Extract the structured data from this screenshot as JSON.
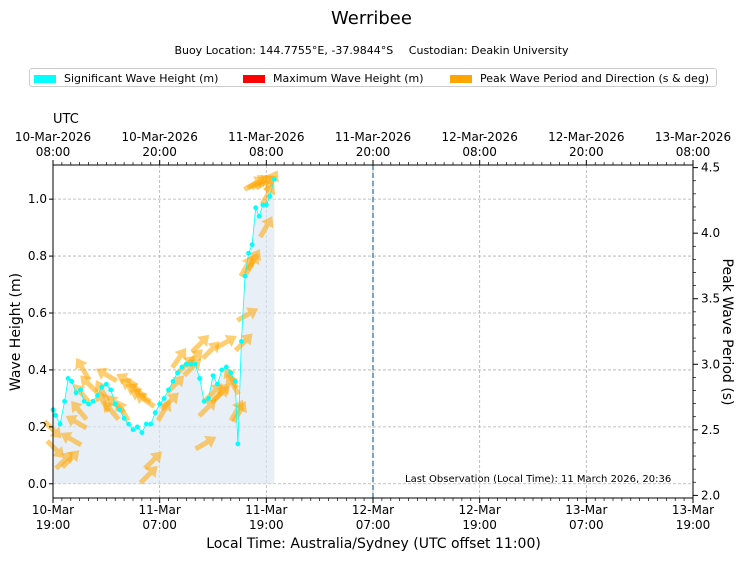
{
  "title": "Werribee",
  "subtitle": {
    "location": "Buoy Location: 144.7755°E, -37.9844°S",
    "custodian": "Custodian: Deakin University"
  },
  "legend": [
    {
      "label": "Significant Wave Height (m)",
      "color": "#00ffff"
    },
    {
      "label": "Maximum Wave Height (m)",
      "color": "#ff0000"
    },
    {
      "label": "Peak Wave Period and Direction (s & deg)",
      "color": "#ffa500"
    }
  ],
  "last_observation": "Last Observation (Local Time): 11 March 2026, 20:36",
  "utc_label": "UTC",
  "chart_data": {
    "type": "line",
    "title": "Werribee",
    "xlabel": "Local Time: Australia/Sydney (UTC offset 11:00)",
    "ylabel": "Wave Height (m)",
    "y2label": "Peak Wave Period (s)",
    "xlim_hours": [
      0,
      72
    ],
    "ylim": [
      -0.05,
      1.12
    ],
    "y2lim": [
      1.98,
      4.52
    ],
    "yticks": [
      0.0,
      0.2,
      0.4,
      0.6,
      0.8,
      1.0
    ],
    "y2ticks": [
      2.0,
      2.5,
      3.0,
      3.5,
      4.0,
      4.5
    ],
    "xticks_bottom": [
      {
        "h": 0,
        "l1": "10-Mar",
        "l2": "19:00"
      },
      {
        "h": 12,
        "l1": "11-Mar",
        "l2": "07:00"
      },
      {
        "h": 24,
        "l1": "11-Mar",
        "l2": "19:00"
      },
      {
        "h": 36,
        "l1": "12-Mar",
        "l2": "07:00"
      },
      {
        "h": 48,
        "l1": "12-Mar",
        "l2": "19:00"
      },
      {
        "h": 60,
        "l1": "13-Mar",
        "l2": "07:00"
      },
      {
        "h": 72,
        "l1": "13-Mar",
        "l2": "19:00"
      }
    ],
    "xticks_top": [
      {
        "h": 0,
        "l1": "10-Mar-2026",
        "l2": "08:00"
      },
      {
        "h": 12,
        "l1": "10-Mar-2026",
        "l2": "20:00"
      },
      {
        "h": 24,
        "l1": "11-Mar-2026",
        "l2": "08:00"
      },
      {
        "h": 36,
        "l1": "11-Mar-2026",
        "l2": "20:00"
      },
      {
        "h": 48,
        "l1": "12-Mar-2026",
        "l2": "08:00"
      },
      {
        "h": 60,
        "l1": "12-Mar-2026",
        "l2": "20:00"
      },
      {
        "h": 72,
        "l1": "13-Mar-2026",
        "l2": "08:00"
      }
    ],
    "now_marker_h": 36,
    "series": [
      {
        "name": "Significant Wave Height (m)",
        "color": "#00ffff",
        "points": [
          [
            0.0,
            0.26
          ],
          [
            0.3,
            0.24
          ],
          [
            0.8,
            0.21
          ],
          [
            1.3,
            0.29
          ],
          [
            1.7,
            0.37
          ],
          [
            2.1,
            0.36
          ],
          [
            2.6,
            0.32
          ],
          [
            3.1,
            0.33
          ],
          [
            3.5,
            0.29
          ],
          [
            4.0,
            0.28
          ],
          [
            4.5,
            0.29
          ],
          [
            5.0,
            0.31
          ],
          [
            5.5,
            0.34
          ],
          [
            6.0,
            0.35
          ],
          [
            6.5,
            0.33
          ],
          [
            7.0,
            0.28
          ],
          [
            7.5,
            0.26
          ],
          [
            8.0,
            0.23
          ],
          [
            8.5,
            0.21
          ],
          [
            9.0,
            0.19
          ],
          [
            9.5,
            0.2
          ],
          [
            10.0,
            0.18
          ],
          [
            10.5,
            0.21
          ],
          [
            11.0,
            0.21
          ],
          [
            11.5,
            0.25
          ],
          [
            12.0,
            0.28
          ],
          [
            12.5,
            0.3
          ],
          [
            13.0,
            0.33
          ],
          [
            13.5,
            0.36
          ],
          [
            14.0,
            0.39
          ],
          [
            14.5,
            0.41
          ],
          [
            15.0,
            0.42
          ],
          [
            15.5,
            0.42
          ],
          [
            16.0,
            0.42
          ],
          [
            16.5,
            0.37
          ],
          [
            17.0,
            0.29
          ],
          [
            17.5,
            0.3
          ],
          [
            18.0,
            0.38
          ],
          [
            18.5,
            0.35
          ],
          [
            19.0,
            0.4
          ],
          [
            19.5,
            0.41
          ],
          [
            20.0,
            0.39
          ],
          [
            20.5,
            0.36
          ],
          [
            20.8,
            0.14
          ],
          [
            21.2,
            0.5
          ],
          [
            21.6,
            0.73
          ],
          [
            22.0,
            0.81
          ],
          [
            22.4,
            0.84
          ],
          [
            22.8,
            0.97
          ],
          [
            23.2,
            0.94
          ],
          [
            23.6,
            0.98
          ],
          [
            24.0,
            0.98
          ],
          [
            24.4,
            1.01
          ],
          [
            24.9,
            1.07
          ]
        ]
      },
      {
        "name": "Peak Wave Period and Direction (s & deg)",
        "color": "#ffa500",
        "points": [
          [
            0.0,
            2.5,
            135
          ],
          [
            0.3,
            2.35,
            135
          ],
          [
            1.3,
            2.27,
            45
          ],
          [
            2.0,
            2.28,
            45
          ],
          [
            2.0,
            2.43,
            300
          ],
          [
            2.6,
            2.56,
            300
          ],
          [
            2.9,
            2.65,
            320
          ],
          [
            3.2,
            2.78,
            320
          ],
          [
            3.3,
            2.97,
            330
          ],
          [
            4.0,
            2.85,
            315
          ],
          [
            5.5,
            2.8,
            330
          ],
          [
            5.6,
            2.72,
            330
          ],
          [
            6.0,
            2.92,
            300
          ],
          [
            6.5,
            2.65,
            320
          ],
          [
            7.0,
            2.7,
            315
          ],
          [
            7.8,
            2.65,
            330
          ],
          [
            8.3,
            2.88,
            300
          ],
          [
            8.7,
            2.84,
            300
          ],
          [
            9.3,
            2.8,
            300
          ],
          [
            9.8,
            2.76,
            300
          ],
          [
            10.3,
            2.73,
            305
          ],
          [
            10.8,
            2.16,
            45
          ],
          [
            11.3,
            2.27,
            45
          ],
          [
            12.5,
            2.65,
            30
          ],
          [
            13.2,
            2.72,
            45
          ],
          [
            13.8,
            2.85,
            45
          ],
          [
            14.2,
            3.05,
            35
          ],
          [
            15.0,
            3.0,
            45
          ],
          [
            15.7,
            2.98,
            45
          ],
          [
            15.9,
            3.05,
            45
          ],
          [
            16.6,
            3.16,
            45
          ],
          [
            17.2,
            2.4,
            60
          ],
          [
            17.4,
            2.67,
            45
          ],
          [
            17.8,
            3.11,
            45
          ],
          [
            18.1,
            2.79,
            45
          ],
          [
            18.8,
            2.77,
            45
          ],
          [
            19.0,
            2.79,
            45
          ],
          [
            19.5,
            3.17,
            60
          ],
          [
            20.0,
            2.9,
            330
          ],
          [
            20.2,
            2.85,
            330
          ],
          [
            20.7,
            2.65,
            30
          ],
          [
            21.0,
            2.64,
            30
          ],
          [
            21.5,
            3.17,
            45
          ],
          [
            21.9,
            3.38,
            60
          ],
          [
            21.8,
            3.75,
            30
          ],
          [
            22.4,
            3.77,
            30
          ],
          [
            22.6,
            3.8,
            30
          ],
          [
            24.0,
            4.05,
            30
          ],
          [
            24.2,
            4.3,
            30
          ],
          [
            24.6,
            4.4,
            30
          ],
          [
            22.7,
            4.38,
            60
          ],
          [
            23.1,
            4.39,
            60
          ],
          [
            23.5,
            4.39,
            60
          ],
          [
            24.0,
            4.39,
            60
          ]
        ]
      }
    ]
  }
}
